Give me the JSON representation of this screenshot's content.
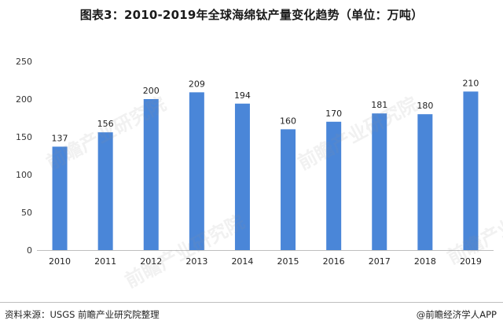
{
  "title": "图表3：2010-2019年全球海绵钛产量变化趋势（单位：万吨）",
  "chart_data": {
    "type": "bar",
    "categories": [
      "2010",
      "2011",
      "2012",
      "2013",
      "2014",
      "2015",
      "2016",
      "2017",
      "2018",
      "2019"
    ],
    "values": [
      137,
      156,
      200,
      209,
      194,
      160,
      170,
      181,
      180,
      210
    ],
    "y_ticks": [
      0,
      50,
      100,
      150,
      200,
      250
    ],
    "ylim": [
      0,
      250
    ],
    "bar_color": "#4a86d8",
    "grid": false,
    "data_labels": true
  },
  "footer": {
    "source": "资料来源：USGS  前瞻产业研究院整理",
    "credit": "@前瞻经济学人APP"
  },
  "watermark": "前瞻产业研究院"
}
